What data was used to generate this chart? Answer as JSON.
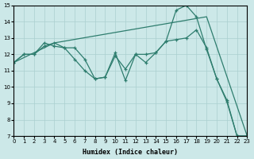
{
  "xlabel": "Humidex (Indice chaleur)",
  "ylabel": "",
  "xlim": [
    0,
    23
  ],
  "ylim": [
    7,
    15
  ],
  "xticks": [
    0,
    1,
    2,
    3,
    4,
    5,
    6,
    7,
    8,
    9,
    10,
    11,
    12,
    13,
    14,
    15,
    16,
    17,
    18,
    19,
    20,
    21,
    22,
    23
  ],
  "yticks": [
    7,
    8,
    9,
    10,
    11,
    12,
    13,
    14,
    15
  ],
  "bg_color": "#cce8e8",
  "grid_color": "#aacfcf",
  "line_color": "#2e7d6e",
  "series1_x": [
    0,
    1,
    2,
    3,
    4,
    5,
    6,
    7,
    8,
    9,
    10,
    11,
    12,
    13,
    14,
    15,
    16,
    17,
    18,
    19,
    20,
    21,
    22,
    23
  ],
  "series1_y": [
    11.5,
    12.0,
    12.0,
    12.7,
    12.5,
    12.4,
    11.7,
    11.0,
    10.5,
    10.6,
    12.1,
    10.4,
    12.0,
    11.5,
    12.1,
    12.8,
    14.7,
    15.0,
    14.3,
    12.3,
    10.5,
    9.2,
    7.0,
    7.0
  ],
  "series2_x": [
    0,
    1,
    2,
    3,
    4,
    5,
    6,
    7,
    8,
    9,
    10,
    11,
    12,
    13,
    14,
    15,
    16,
    17,
    18,
    19,
    20,
    21,
    22,
    23
  ],
  "series2_y": [
    11.5,
    12.0,
    12.0,
    12.5,
    12.7,
    12.4,
    12.4,
    11.7,
    10.5,
    10.6,
    11.9,
    11.1,
    12.0,
    12.0,
    12.1,
    12.8,
    12.9,
    13.0,
    13.5,
    12.4,
    10.5,
    9.1,
    7.0,
    7.0
  ],
  "series3_x": [
    0,
    4,
    19,
    23
  ],
  "series3_y": [
    11.5,
    12.7,
    14.3,
    7.0
  ]
}
